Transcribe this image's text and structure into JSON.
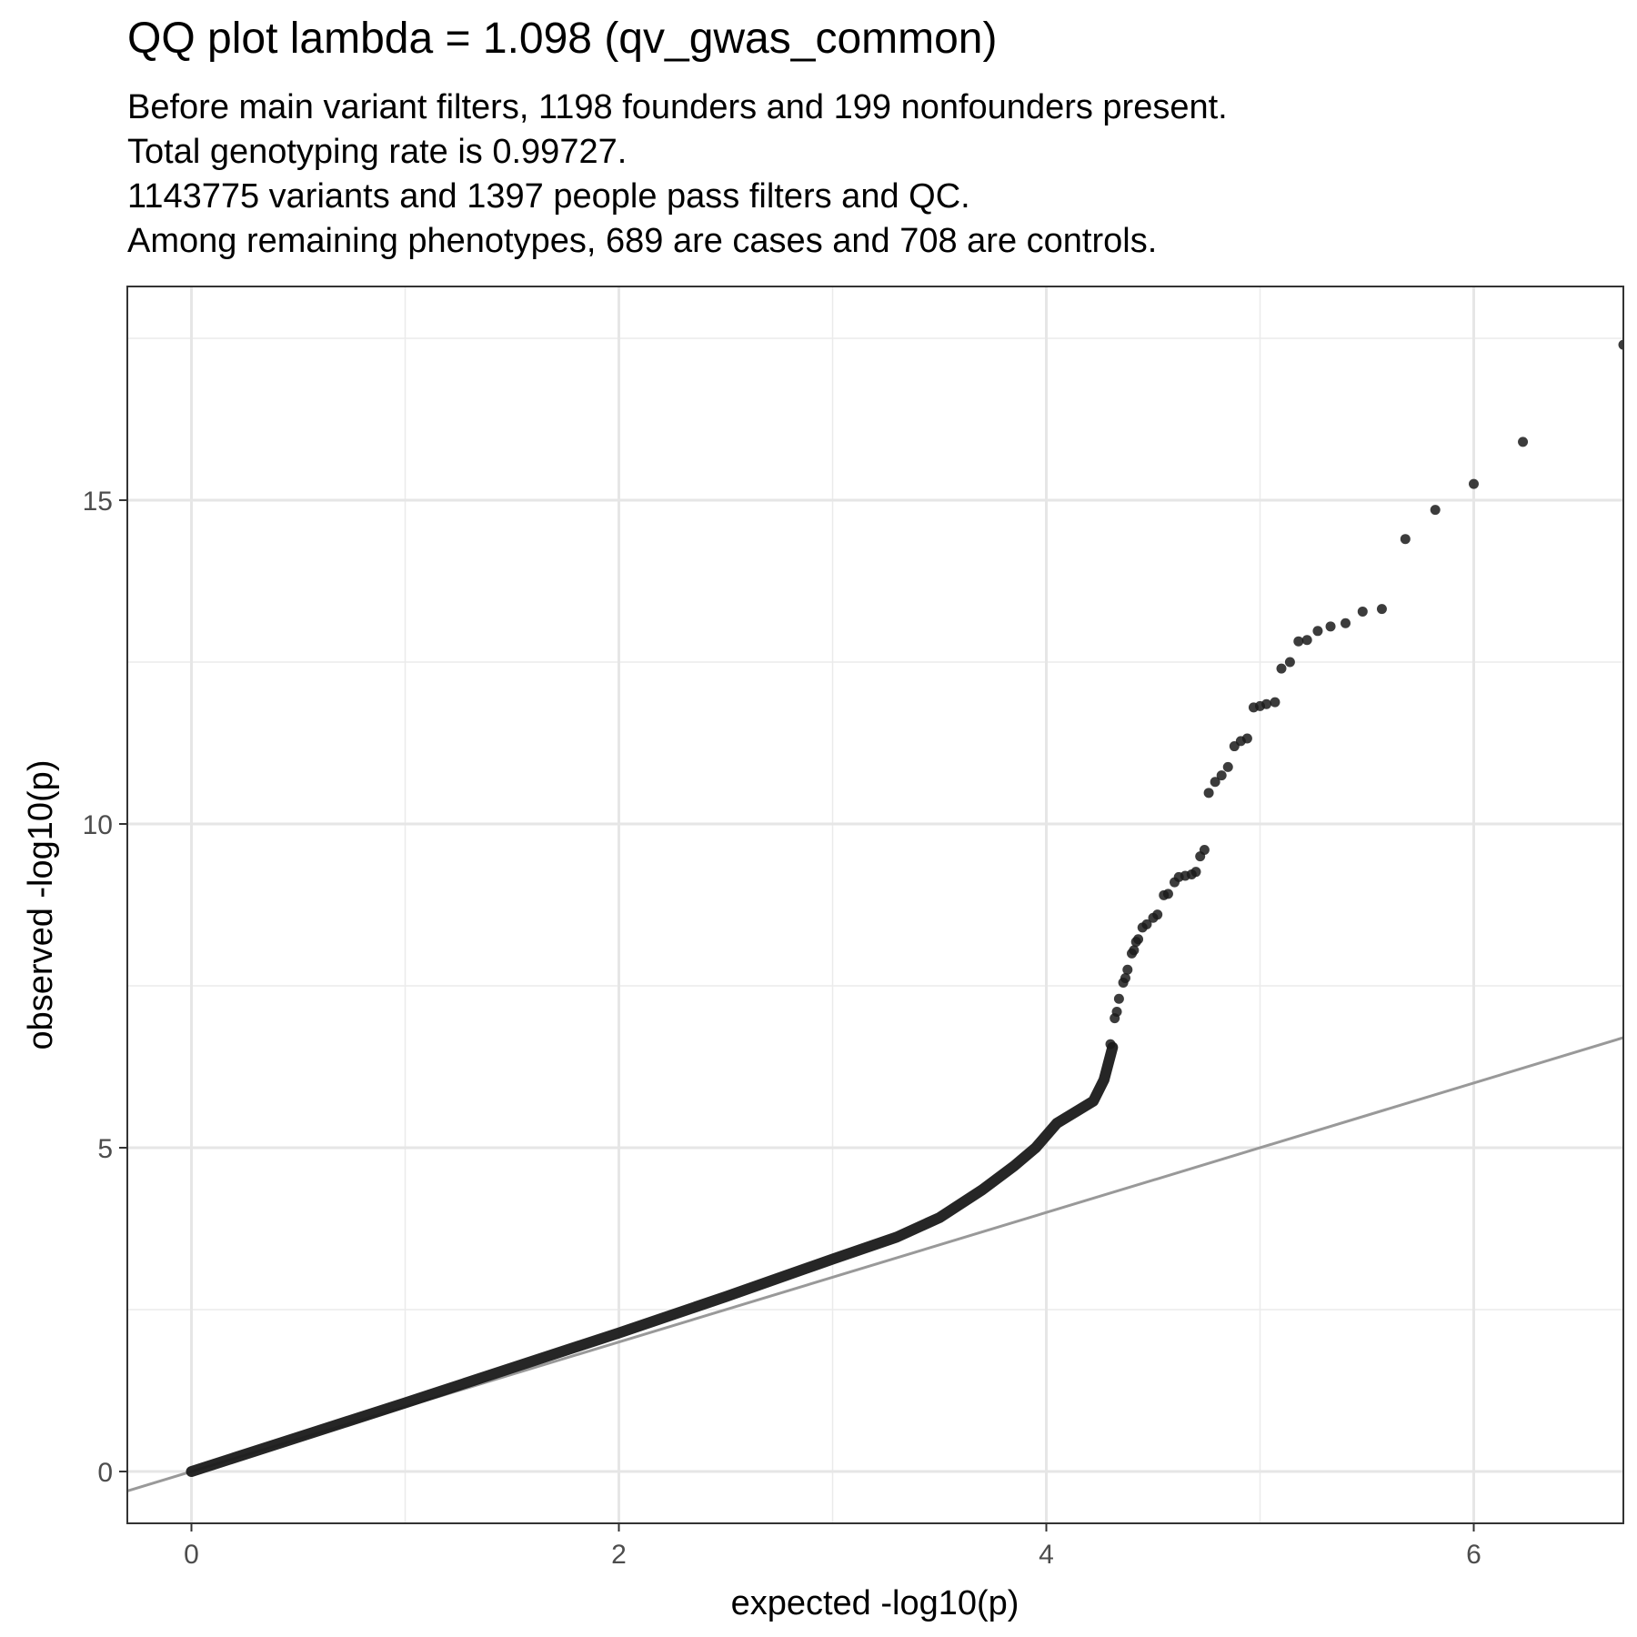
{
  "chart_data": {
    "type": "scatter",
    "title": "QQ plot  lambda = 1.098 (qv_gwas_common)",
    "subtitle_lines": [
      "Before main variant filters, 1198 founders and 199 nonfounders present.",
      "Total genotyping rate is 0.99727.",
      "1143775 variants and 1397 people pass filters and QC.",
      "Among remaining phenotypes, 689 are cases and 708 are controls."
    ],
    "xlabel": "expected -log10(p)",
    "ylabel": "observed -log10(p)",
    "xlim": [
      -0.3,
      6.7
    ],
    "ylim": [
      -0.8,
      18.3
    ],
    "x_ticks": [
      0,
      2,
      4,
      6
    ],
    "y_ticks": [
      0,
      5,
      10,
      15
    ],
    "grid": true,
    "legend": "none",
    "reference_line": {
      "slope": 1,
      "intercept": 0,
      "color": "#999999"
    },
    "point_color": "#1a1a1a",
    "dense_curve": [
      [
        0,
        0
      ],
      [
        0.5,
        0.53
      ],
      [
        1,
        1.06
      ],
      [
        1.5,
        1.6
      ],
      [
        2,
        2.14
      ],
      [
        2.5,
        2.7
      ],
      [
        3,
        3.28
      ],
      [
        3.3,
        3.62
      ],
      [
        3.5,
        3.92
      ],
      [
        3.7,
        4.35
      ],
      [
        3.85,
        4.72
      ],
      [
        3.95,
        5.0
      ],
      [
        4.05,
        5.38
      ],
      [
        4.15,
        5.58
      ],
      [
        4.22,
        5.72
      ],
      [
        4.27,
        6.05
      ],
      [
        4.31,
        6.55
      ]
    ],
    "points": [
      [
        4.3,
        6.6
      ],
      [
        4.32,
        7.0
      ],
      [
        4.33,
        7.1
      ],
      [
        4.34,
        7.3
      ],
      [
        4.36,
        7.55
      ],
      [
        4.37,
        7.62
      ],
      [
        4.38,
        7.75
      ],
      [
        4.4,
        8.0
      ],
      [
        4.41,
        8.05
      ],
      [
        4.42,
        8.18
      ],
      [
        4.43,
        8.22
      ],
      [
        4.45,
        8.4
      ],
      [
        4.47,
        8.45
      ],
      [
        4.5,
        8.55
      ],
      [
        4.52,
        8.6
      ],
      [
        4.55,
        8.9
      ],
      [
        4.57,
        8.92
      ],
      [
        4.6,
        9.1
      ],
      [
        4.62,
        9.18
      ],
      [
        4.65,
        9.2
      ],
      [
        4.68,
        9.22
      ],
      [
        4.7,
        9.26
      ],
      [
        4.72,
        9.5
      ],
      [
        4.74,
        9.6
      ],
      [
        4.76,
        10.48
      ],
      [
        4.79,
        10.65
      ],
      [
        4.82,
        10.75
      ],
      [
        4.85,
        10.88
      ],
      [
        4.88,
        11.2
      ],
      [
        4.91,
        11.28
      ],
      [
        4.94,
        11.32
      ],
      [
        4.97,
        11.8
      ],
      [
        5.0,
        11.82
      ],
      [
        5.03,
        11.85
      ],
      [
        5.07,
        11.88
      ],
      [
        5.1,
        12.4
      ],
      [
        5.14,
        12.5
      ],
      [
        5.18,
        12.82
      ],
      [
        5.22,
        12.84
      ],
      [
        5.27,
        12.98
      ],
      [
        5.33,
        13.05
      ],
      [
        5.4,
        13.1
      ],
      [
        5.48,
        13.28
      ],
      [
        5.57,
        13.32
      ],
      [
        5.68,
        14.4
      ],
      [
        5.82,
        14.85
      ],
      [
        6.0,
        15.25
      ],
      [
        6.23,
        15.9
      ],
      [
        6.7,
        17.4
      ]
    ]
  }
}
